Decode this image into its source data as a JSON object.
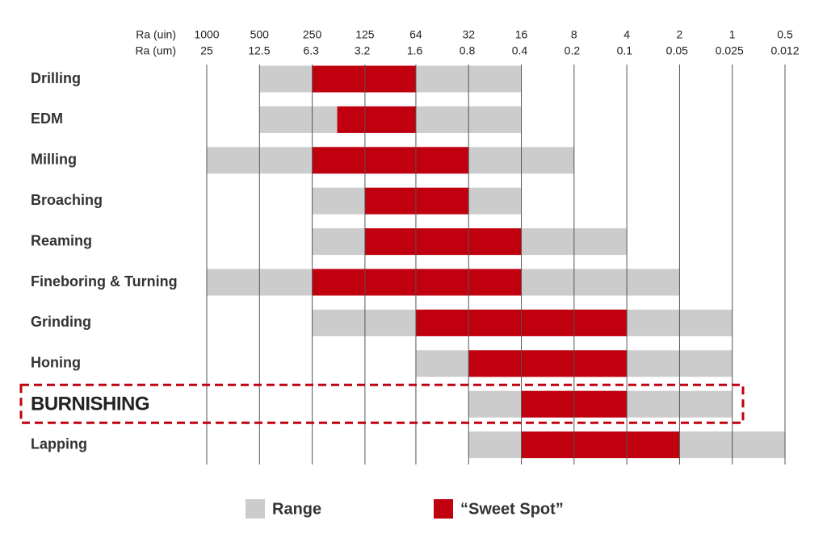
{
  "chart_data": {
    "type": "range_bar",
    "x_label": "Ra (uin)",
    "x2_label": "Ra (um)",
    "xlim": [
      1000,
      0.5
    ],
    "xticks": [
      1000,
      500,
      250,
      125,
      64,
      32,
      16,
      8,
      4,
      2,
      1,
      0.5
    ],
    "x2lim": [
      25,
      0.012
    ],
    "x2ticks": [
      25,
      12.5,
      6.3,
      3.2,
      1.6,
      0.8,
      0.4,
      0.2,
      0.1,
      0.05,
      0.025,
      0.012
    ],
    "log_scale": true,
    "grid": true,
    "categories": [
      "Drilling",
      "EDM",
      "Milling",
      "Broaching",
      "Reaming",
      "Fineboring & Turning",
      "Grinding",
      "Honing",
      "BURNISHING",
      "Lapping"
    ],
    "highlight": "BURNISHING",
    "series": [
      {
        "name": "Range",
        "color": "#cccccc",
        "values": [
          [
            500,
            16
          ],
          [
            500,
            16
          ],
          [
            1000,
            8
          ],
          [
            250,
            16
          ],
          [
            250,
            4
          ],
          [
            1000,
            2
          ],
          [
            250,
            1
          ],
          [
            64,
            1
          ],
          [
            32,
            1
          ],
          [
            32,
            0.5
          ]
        ]
      },
      {
        "name": "“Sweet Spot”",
        "color": "#c0000f",
        "values": [
          [
            250,
            64
          ],
          [
            180,
            64
          ],
          [
            250,
            32
          ],
          [
            125,
            32
          ],
          [
            125,
            16
          ],
          [
            250,
            16
          ],
          [
            64,
            4
          ],
          [
            32,
            4
          ],
          [
            16,
            4
          ],
          [
            16,
            2
          ]
        ]
      }
    ],
    "legend": "bottom"
  }
}
